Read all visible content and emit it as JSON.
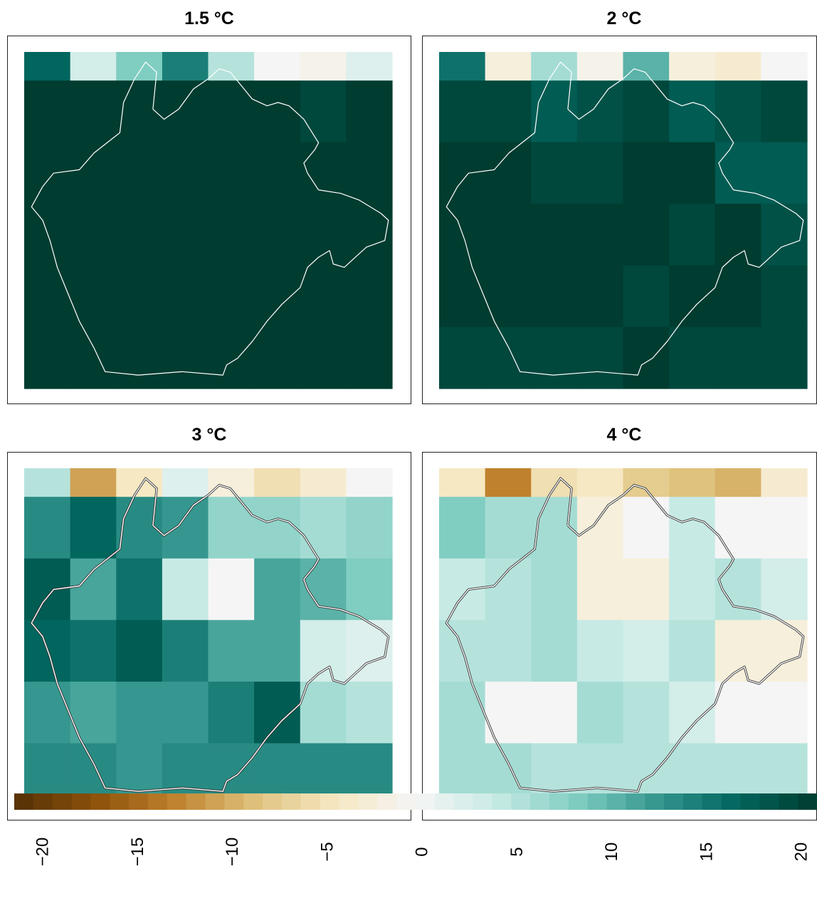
{
  "chart_data": [
    {
      "type": "heatmap",
      "title": "1.5 °C",
      "columns": 8,
      "rows": 5,
      "values": [
        [
          20,
          20,
          20,
          20,
          20,
          20,
          19,
          20
        ],
        [
          20,
          20,
          21,
          21,
          21,
          21,
          21,
          20
        ],
        [
          21,
          21,
          21,
          21,
          21,
          21,
          21,
          21
        ],
        [
          21,
          21,
          21,
          21,
          21,
          21,
          21,
          21
        ],
        [
          21,
          21,
          21,
          21,
          21,
          21,
          21,
          21
        ]
      ],
      "top_strip_values": [
        16,
        3,
        8,
        14,
        5,
        0,
        -1,
        2
      ]
    },
    {
      "type": "heatmap",
      "title": "2 °C",
      "columns": 8,
      "rows": 5,
      "values": [
        [
          19,
          19,
          17,
          18,
          19,
          17,
          18,
          19
        ],
        [
          21,
          21,
          19,
          19,
          21,
          20,
          17,
          17
        ],
        [
          21,
          21,
          21,
          20,
          20,
          19,
          20,
          18
        ],
        [
          20,
          20,
          20,
          20,
          19,
          20,
          20,
          19
        ],
        [
          19,
          19,
          19,
          19,
          20,
          19,
          19,
          19
        ]
      ],
      "top_strip_values": [
        15,
        -2,
        6,
        -1,
        10,
        -2,
        -3,
        0
      ]
    },
    {
      "type": "heatmap",
      "title": "3 °C",
      "columns": 8,
      "rows": 5,
      "values": [
        [
          13,
          16,
          13,
          12,
          7,
          7,
          6,
          7
        ],
        [
          17,
          11,
          15,
          4,
          0,
          11,
          10,
          8
        ],
        [
          16,
          15,
          17,
          14,
          11,
          11,
          3,
          2
        ],
        [
          12,
          11,
          12,
          12,
          14,
          17,
          6,
          5
        ],
        [
          13,
          13,
          12,
          13,
          13,
          13,
          13,
          13
        ]
      ],
      "top_strip_values": [
        5,
        -10,
        -4,
        2,
        -2,
        -5,
        -3,
        0
      ]
    },
    {
      "type": "heatmap",
      "title": "4 °C",
      "columns": 8,
      "rows": 5,
      "values": [
        [
          8,
          6,
          6,
          -2,
          0,
          4,
          0,
          0
        ],
        [
          4,
          5,
          6,
          -2,
          -2,
          4,
          5,
          3
        ],
        [
          5,
          5,
          6,
          4,
          3,
          5,
          -2,
          -2
        ],
        [
          6,
          0,
          0,
          6,
          5,
          3,
          0,
          0
        ],
        [
          6,
          6,
          5,
          5,
          5,
          5,
          5,
          5
        ]
      ],
      "top_strip_values": [
        -4,
        -12,
        -5,
        -4,
        -7,
        -8,
        -9,
        -3
      ]
    }
  ],
  "legend": {
    "min": -20,
    "max": 20,
    "ticks": [
      "-20",
      "-15",
      "-10",
      "-5",
      "0",
      "5",
      "10",
      "15",
      "20"
    ],
    "colors_negative": [
      "#543005",
      "#8c510a",
      "#bf812d",
      "#dfc27d",
      "#f6e8c3",
      "#f5f5f5"
    ],
    "colors_positive": [
      "#f5f5f5",
      "#c7eae5",
      "#80cdc1",
      "#35978f",
      "#01665e",
      "#003c30"
    ]
  }
}
